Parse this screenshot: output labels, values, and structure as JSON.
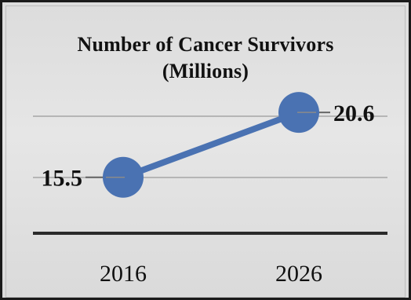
{
  "chart_data": {
    "type": "line",
    "title_line1": "Number of Cancer Survivors",
    "title_line2": "(Millions)",
    "categories": [
      "2016",
      "2026"
    ],
    "series": [
      {
        "values": [
          15.5,
          20.6
        ],
        "data_labels": [
          "15.5",
          "20.6"
        ]
      }
    ],
    "ylim": [
      11.1,
      24.5
    ],
    "grid": true,
    "legend": "none",
    "colors": {
      "line": "#4a72b2",
      "marker": "#4a72b2",
      "axis": "#2a2a2a",
      "grid": "#b5b5b5"
    }
  }
}
